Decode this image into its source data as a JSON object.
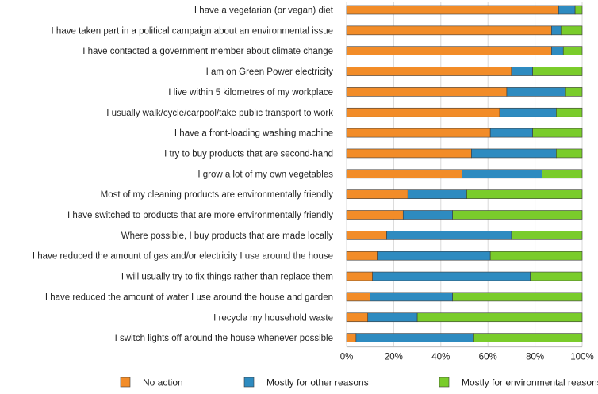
{
  "chart_data": {
    "type": "bar",
    "orientation": "horizontal",
    "stacked": true,
    "categories": [
      "I have a vegetarian  (or vegan) diet",
      "I have taken part in a political campaign about an environmental issue",
      "I have contacted a government member about climate change",
      "I am on Green Power electricity",
      "I live within 5 kilometres of my workplace",
      "I usually walk/cycle/carpool/take public transport to work",
      "I have a front-loading washing machine",
      "I try to buy products that are second-hand",
      "I grow a lot of my own vegetables",
      "Most of my cleaning products are environmentally friendly",
      "I have switched to products that are more environmentally friendly",
      "Where possible, I buy products that are made locally",
      "I have reduced the amount of gas and/or electricity I use around the house",
      "I will usually try to fix things rather than replace them",
      "I have reduced the amount of water I use around the house and garden",
      "I recycle my household waste",
      "I switch lights off around the house whenever possible"
    ],
    "series": [
      {
        "name": "No action",
        "color": "#F28C28",
        "values": [
          90,
          87,
          87,
          70,
          68,
          65,
          61,
          53,
          49,
          26,
          24,
          17,
          13,
          11,
          10,
          9,
          4
        ]
      },
      {
        "name": "Mostly for other reasons",
        "color": "#2E8BC0",
        "values": [
          7,
          4,
          5,
          9,
          25,
          24,
          18,
          36,
          34,
          25,
          21,
          53,
          48,
          67,
          35,
          21,
          50
        ]
      },
      {
        "name": "Mostly for environmental reasons",
        "color": "#7ACC2B",
        "values": [
          3,
          9,
          8,
          21,
          7,
          11,
          21,
          11,
          17,
          49,
          55,
          30,
          39,
          22,
          55,
          70,
          46
        ]
      }
    ],
    "xlim": [
      0,
      100
    ],
    "x_ticks": [
      "0%",
      "20%",
      "40%",
      "60%",
      "80%",
      "100%"
    ],
    "grid": true,
    "legend_position": "bottom"
  }
}
